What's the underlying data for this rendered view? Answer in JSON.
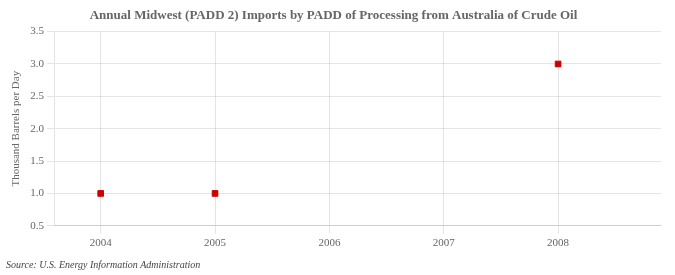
{
  "chart_data": {
    "type": "scatter",
    "title": "Annual Midwest (PADD 2) Imports by PADD of Processing from Australia of Crude Oil",
    "ylabel": "Thousand Barrels per Day",
    "source": "Source: U.S. Energy Information Administration",
    "x": [
      2004,
      2005,
      2008
    ],
    "values": [
      1.0,
      1.0,
      3.0
    ],
    "color": "#cc0000",
    "marker": "square",
    "xlim": [
      2003.6,
      2008.9
    ],
    "ylim": [
      0.5,
      3.5
    ],
    "xticks": [
      2004,
      2005,
      2006,
      2007,
      2008
    ],
    "yticks": [
      0.5,
      {
        "value": 1.0,
        "label": "1.0"
      },
      1.5,
      {
        "value": 2.0,
        "label": "2.0"
      },
      {
        "value": 2.5,
        "label": "2.5"
      },
      {
        "value": 3.0,
        "label": "3.0"
      },
      3.5
    ],
    "grid": true
  }
}
